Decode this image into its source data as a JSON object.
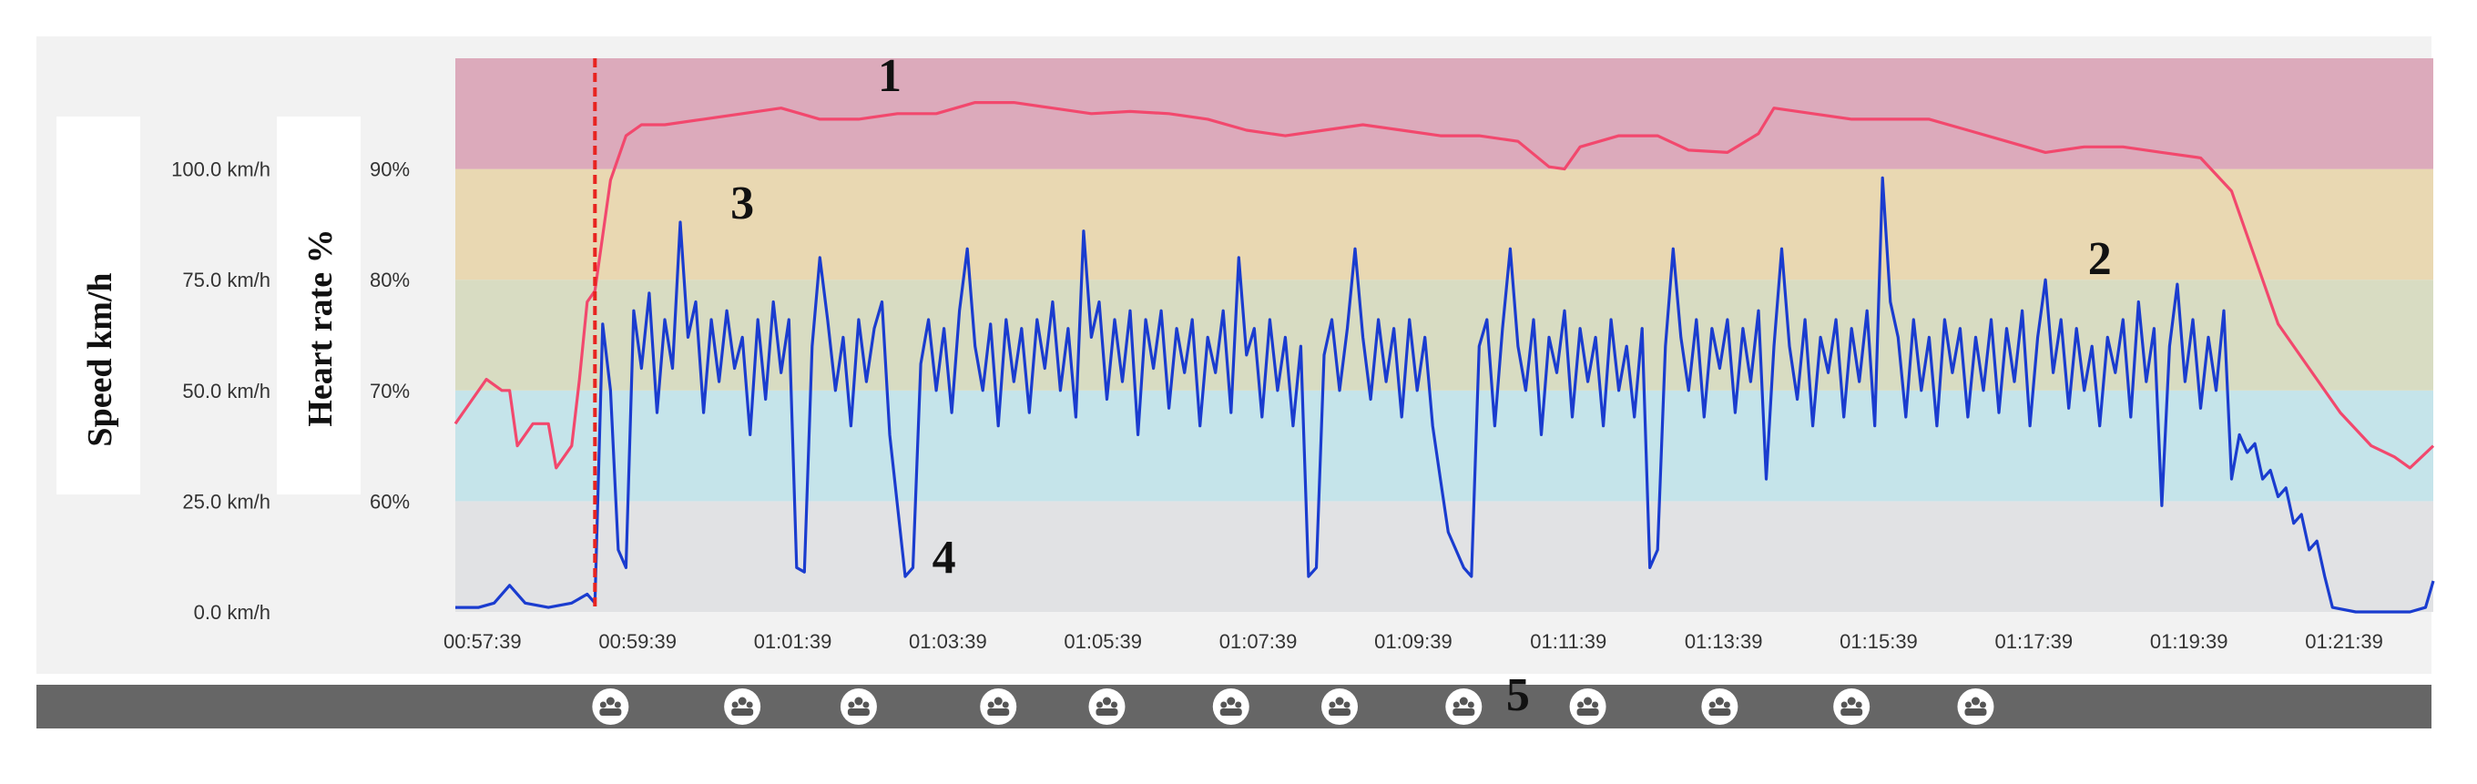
{
  "chart_data": {
    "type": "line",
    "y_left_label": "Speed km/h",
    "y_right_label": "Heart rate %",
    "speed_ticks": [
      "0.0 km/h",
      "25.0 km/h",
      "50.0 km/h",
      "75.0 km/h",
      "100.0 km/h"
    ],
    "hr_ticks": [
      "60%",
      "70%",
      "80%",
      "90%"
    ],
    "speed_range": [
      0,
      125
    ],
    "hr_range": [
      50,
      100
    ],
    "x_ticks": [
      "00:57:39",
      "00:59:39",
      "01:01:39",
      "01:03:39",
      "01:05:39",
      "01:07:39",
      "01:09:39",
      "01:11:39",
      "01:13:39",
      "01:15:39",
      "01:17:39",
      "01:19:39",
      "01:21:39"
    ],
    "x_range_min": [
      57.3,
      82.8
    ],
    "zones": [
      {
        "from": 50,
        "to": 60,
        "color": "#e1e2e4"
      },
      {
        "from": 60,
        "to": 70,
        "color": "#c5e4ea"
      },
      {
        "from": 70,
        "to": 80,
        "color": "#d8dcc2"
      },
      {
        "from": 80,
        "to": 90,
        "color": "#e9d8b2"
      },
      {
        "from": 90,
        "to": 100,
        "color": "#dcaabb"
      }
    ],
    "marker_time_min": 59.1,
    "series": [
      {
        "name": "",
        "axis": "hr",
        "color": "#f2486d",
        "points": [
          [
            57.3,
            67
          ],
          [
            57.5,
            69
          ],
          [
            57.7,
            71
          ],
          [
            57.9,
            70
          ],
          [
            58.0,
            70
          ],
          [
            58.1,
            65
          ],
          [
            58.3,
            67
          ],
          [
            58.5,
            67
          ],
          [
            58.6,
            63
          ],
          [
            58.8,
            65
          ],
          [
            58.9,
            71
          ],
          [
            59.0,
            78
          ],
          [
            59.1,
            79
          ],
          [
            59.3,
            89
          ],
          [
            59.5,
            93
          ],
          [
            59.7,
            94
          ],
          [
            60.0,
            94
          ],
          [
            60.5,
            94.5
          ],
          [
            61.0,
            95
          ],
          [
            61.5,
            95.5
          ],
          [
            62.0,
            94.5
          ],
          [
            62.5,
            94.5
          ],
          [
            63.0,
            95
          ],
          [
            63.5,
            95
          ],
          [
            64.0,
            96
          ],
          [
            64.5,
            96
          ],
          [
            65.0,
            95.5
          ],
          [
            65.5,
            95
          ],
          [
            66.0,
            95.2
          ],
          [
            66.5,
            95
          ],
          [
            67.0,
            94.5
          ],
          [
            67.5,
            93.5
          ],
          [
            68.0,
            93
          ],
          [
            68.5,
            93.5
          ],
          [
            69.0,
            94
          ],
          [
            69.5,
            93.5
          ],
          [
            70.0,
            93
          ],
          [
            70.5,
            93
          ],
          [
            71.0,
            92.5
          ],
          [
            71.4,
            90.2
          ],
          [
            71.6,
            90
          ],
          [
            71.8,
            92
          ],
          [
            72.3,
            93
          ],
          [
            72.8,
            93
          ],
          [
            73.2,
            91.7
          ],
          [
            73.7,
            91.5
          ],
          [
            74.1,
            93.2
          ],
          [
            74.3,
            95.5
          ],
          [
            74.8,
            95
          ],
          [
            75.3,
            94.5
          ],
          [
            75.8,
            94.5
          ],
          [
            76.3,
            94.5
          ],
          [
            76.8,
            93.5
          ],
          [
            77.3,
            92.5
          ],
          [
            77.8,
            91.5
          ],
          [
            78.3,
            92
          ],
          [
            78.8,
            92
          ],
          [
            79.3,
            91.5
          ],
          [
            79.8,
            91
          ],
          [
            80.2,
            88
          ],
          [
            80.5,
            82
          ],
          [
            80.8,
            76
          ],
          [
            81.2,
            72
          ],
          [
            81.6,
            68
          ],
          [
            82.0,
            65
          ],
          [
            82.3,
            64
          ],
          [
            82.5,
            63
          ],
          [
            82.8,
            65
          ]
        ]
      },
      {
        "name": "",
        "axis": "speed",
        "color": "#1a3ccf",
        "points": [
          [
            57.3,
            1
          ],
          [
            57.6,
            1
          ],
          [
            57.8,
            2
          ],
          [
            58.0,
            6
          ],
          [
            58.2,
            2
          ],
          [
            58.5,
            1
          ],
          [
            58.8,
            2
          ],
          [
            59.0,
            4
          ],
          [
            59.1,
            2
          ],
          [
            59.2,
            65
          ],
          [
            59.3,
            50
          ],
          [
            59.4,
            14
          ],
          [
            59.5,
            10
          ],
          [
            59.6,
            68
          ],
          [
            59.7,
            55
          ],
          [
            59.8,
            72
          ],
          [
            59.9,
            45
          ],
          [
            60.0,
            66
          ],
          [
            60.1,
            55
          ],
          [
            60.2,
            88
          ],
          [
            60.3,
            62
          ],
          [
            60.4,
            70
          ],
          [
            60.5,
            45
          ],
          [
            60.6,
            66
          ],
          [
            60.7,
            52
          ],
          [
            60.8,
            68
          ],
          [
            60.9,
            55
          ],
          [
            61.0,
            62
          ],
          [
            61.1,
            40
          ],
          [
            61.2,
            66
          ],
          [
            61.3,
            48
          ],
          [
            61.4,
            70
          ],
          [
            61.5,
            54
          ],
          [
            61.6,
            66
          ],
          [
            61.7,
            10
          ],
          [
            61.8,
            9
          ],
          [
            61.9,
            60
          ],
          [
            62.0,
            80
          ],
          [
            62.1,
            66
          ],
          [
            62.2,
            50
          ],
          [
            62.3,
            62
          ],
          [
            62.4,
            42
          ],
          [
            62.5,
            66
          ],
          [
            62.6,
            52
          ],
          [
            62.7,
            64
          ],
          [
            62.8,
            70
          ],
          [
            62.9,
            40
          ],
          [
            63.0,
            24
          ],
          [
            63.1,
            8
          ],
          [
            63.2,
            10
          ],
          [
            63.3,
            56
          ],
          [
            63.4,
            66
          ],
          [
            63.5,
            50
          ],
          [
            63.6,
            64
          ],
          [
            63.7,
            45
          ],
          [
            63.8,
            68
          ],
          [
            63.9,
            82
          ],
          [
            64.0,
            60
          ],
          [
            64.1,
            50
          ],
          [
            64.2,
            65
          ],
          [
            64.3,
            42
          ],
          [
            64.4,
            66
          ],
          [
            64.5,
            52
          ],
          [
            64.6,
            64
          ],
          [
            64.7,
            45
          ],
          [
            64.8,
            66
          ],
          [
            64.9,
            55
          ],
          [
            65.0,
            70
          ],
          [
            65.1,
            50
          ],
          [
            65.2,
            64
          ],
          [
            65.3,
            44
          ],
          [
            65.4,
            86
          ],
          [
            65.5,
            62
          ],
          [
            65.6,
            70
          ],
          [
            65.7,
            48
          ],
          [
            65.8,
            66
          ],
          [
            65.9,
            52
          ],
          [
            66.0,
            68
          ],
          [
            66.1,
            40
          ],
          [
            66.2,
            66
          ],
          [
            66.3,
            55
          ],
          [
            66.4,
            68
          ],
          [
            66.5,
            46
          ],
          [
            66.6,
            64
          ],
          [
            66.7,
            54
          ],
          [
            66.8,
            66
          ],
          [
            66.9,
            42
          ],
          [
            67.0,
            62
          ],
          [
            67.1,
            54
          ],
          [
            67.2,
            68
          ],
          [
            67.3,
            45
          ],
          [
            67.4,
            80
          ],
          [
            67.5,
            58
          ],
          [
            67.6,
            64
          ],
          [
            67.7,
            44
          ],
          [
            67.8,
            66
          ],
          [
            67.9,
            50
          ],
          [
            68.0,
            62
          ],
          [
            68.1,
            42
          ],
          [
            68.2,
            60
          ],
          [
            68.3,
            8
          ],
          [
            68.4,
            10
          ],
          [
            68.5,
            58
          ],
          [
            68.6,
            66
          ],
          [
            68.7,
            50
          ],
          [
            68.8,
            64
          ],
          [
            68.9,
            82
          ],
          [
            69.0,
            62
          ],
          [
            69.1,
            48
          ],
          [
            69.2,
            66
          ],
          [
            69.3,
            52
          ],
          [
            69.4,
            64
          ],
          [
            69.5,
            44
          ],
          [
            69.6,
            66
          ],
          [
            69.7,
            50
          ],
          [
            69.8,
            62
          ],
          [
            69.9,
            42
          ],
          [
            70.0,
            30
          ],
          [
            70.1,
            18
          ],
          [
            70.2,
            14
          ],
          [
            70.3,
            10
          ],
          [
            70.4,
            8
          ],
          [
            70.5,
            60
          ],
          [
            70.6,
            66
          ],
          [
            70.7,
            42
          ],
          [
            70.8,
            64
          ],
          [
            70.9,
            82
          ],
          [
            71.0,
            60
          ],
          [
            71.1,
            50
          ],
          [
            71.2,
            66
          ],
          [
            71.3,
            40
          ],
          [
            71.4,
            62
          ],
          [
            71.5,
            54
          ],
          [
            71.6,
            68
          ],
          [
            71.7,
            44
          ],
          [
            71.8,
            64
          ],
          [
            71.9,
            52
          ],
          [
            72.0,
            62
          ],
          [
            72.1,
            42
          ],
          [
            72.2,
            66
          ],
          [
            72.3,
            50
          ],
          [
            72.4,
            60
          ],
          [
            72.5,
            44
          ],
          [
            72.6,
            64
          ],
          [
            72.7,
            10
          ],
          [
            72.8,
            14
          ],
          [
            72.9,
            60
          ],
          [
            73.0,
            82
          ],
          [
            73.1,
            62
          ],
          [
            73.2,
            50
          ],
          [
            73.3,
            66
          ],
          [
            73.4,
            44
          ],
          [
            73.5,
            64
          ],
          [
            73.6,
            55
          ],
          [
            73.7,
            66
          ],
          [
            73.8,
            45
          ],
          [
            73.9,
            64
          ],
          [
            74.0,
            52
          ],
          [
            74.1,
            68
          ],
          [
            74.2,
            30
          ],
          [
            74.3,
            60
          ],
          [
            74.4,
            82
          ],
          [
            74.5,
            60
          ],
          [
            74.6,
            48
          ],
          [
            74.7,
            66
          ],
          [
            74.8,
            42
          ],
          [
            74.9,
            62
          ],
          [
            75.0,
            54
          ],
          [
            75.1,
            66
          ],
          [
            75.2,
            44
          ],
          [
            75.3,
            64
          ],
          [
            75.4,
            52
          ],
          [
            75.5,
            68
          ],
          [
            75.6,
            42
          ],
          [
            75.7,
            98
          ],
          [
            75.8,
            70
          ],
          [
            75.9,
            62
          ],
          [
            76.0,
            44
          ],
          [
            76.1,
            66
          ],
          [
            76.2,
            50
          ],
          [
            76.3,
            62
          ],
          [
            76.4,
            42
          ],
          [
            76.5,
            66
          ],
          [
            76.6,
            54
          ],
          [
            76.7,
            64
          ],
          [
            76.8,
            44
          ],
          [
            76.9,
            62
          ],
          [
            77.0,
            50
          ],
          [
            77.1,
            66
          ],
          [
            77.2,
            45
          ],
          [
            77.3,
            64
          ],
          [
            77.4,
            52
          ],
          [
            77.5,
            68
          ],
          [
            77.6,
            42
          ],
          [
            77.7,
            62
          ],
          [
            77.8,
            75
          ],
          [
            77.9,
            54
          ],
          [
            78.0,
            66
          ],
          [
            78.1,
            46
          ],
          [
            78.2,
            64
          ],
          [
            78.3,
            50
          ],
          [
            78.4,
            60
          ],
          [
            78.5,
            42
          ],
          [
            78.6,
            62
          ],
          [
            78.7,
            54
          ],
          [
            78.8,
            66
          ],
          [
            78.9,
            44
          ],
          [
            79.0,
            70
          ],
          [
            79.1,
            52
          ],
          [
            79.2,
            64
          ],
          [
            79.3,
            24
          ],
          [
            79.4,
            60
          ],
          [
            79.5,
            74
          ],
          [
            79.6,
            52
          ],
          [
            79.7,
            66
          ],
          [
            79.8,
            46
          ],
          [
            79.9,
            62
          ],
          [
            80.0,
            50
          ],
          [
            80.1,
            68
          ],
          [
            80.2,
            30
          ],
          [
            80.3,
            40
          ],
          [
            80.4,
            36
          ],
          [
            80.5,
            38
          ],
          [
            80.6,
            30
          ],
          [
            80.7,
            32
          ],
          [
            80.8,
            26
          ],
          [
            80.9,
            28
          ],
          [
            81.0,
            20
          ],
          [
            81.1,
            22
          ],
          [
            81.2,
            14
          ],
          [
            81.3,
            16
          ],
          [
            81.4,
            8
          ],
          [
            81.5,
            1
          ],
          [
            81.8,
            0
          ],
          [
            82.2,
            0
          ],
          [
            82.5,
            0
          ],
          [
            82.7,
            1
          ],
          [
            82.8,
            7
          ]
        ]
      }
    ],
    "callouts": [
      {
        "text": "1",
        "x_min": 62.9,
        "hr": 98.5
      },
      {
        "text": "2",
        "x_min": 78.5,
        "hr": 82
      },
      {
        "text": "3",
        "x_min": 61.0,
        "hr": 87
      },
      {
        "text": "4",
        "x_min": 63.6,
        "hr": 55
      },
      {
        "text": "5",
        "x_min": 71.0,
        "hr": 42.6
      }
    ],
    "footer_icon_times_min": [
      59.3,
      61.0,
      62.5,
      64.3,
      65.7,
      67.3,
      68.7,
      70.3,
      71.9,
      73.6,
      75.3,
      76.9
    ]
  }
}
